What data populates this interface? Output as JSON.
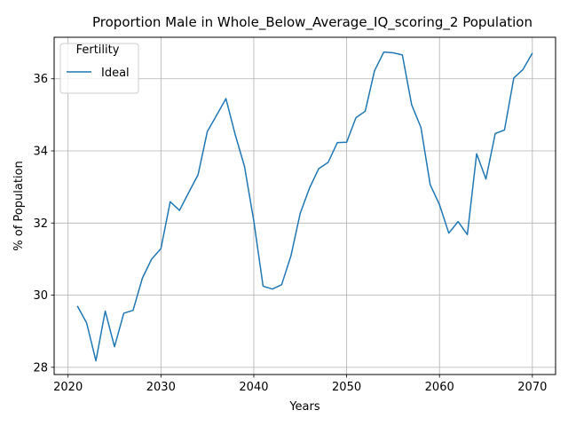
{
  "chart_data": {
    "type": "line",
    "title": "Proportion Male in Whole_Below_Average_IQ_scoring_2 Population",
    "xlabel": "Years",
    "ylabel": "% of Population",
    "xlim": [
      2018.5,
      2072.5
    ],
    "ylim": [
      27.8,
      37.15
    ],
    "xticks": [
      2020,
      2030,
      2040,
      2050,
      2060,
      2070
    ],
    "yticks": [
      28,
      30,
      32,
      34,
      36
    ],
    "grid": true,
    "legend": {
      "title": "Fertility",
      "placement": "top-left"
    },
    "series": [
      {
        "name": "Ideal",
        "color": "#1f77b4",
        "x": [
          2021,
          2022,
          2023,
          2024,
          2025,
          2026,
          2027,
          2028,
          2029,
          2030,
          2031,
          2032,
          2033,
          2034,
          2035,
          2036,
          2037,
          2038,
          2039,
          2040,
          2041,
          2042,
          2043,
          2044,
          2045,
          2046,
          2047,
          2048,
          2049,
          2050,
          2051,
          2052,
          2053,
          2054,
          2055,
          2056,
          2057,
          2058,
          2059,
          2060,
          2061,
          2062,
          2063,
          2064,
          2065,
          2066,
          2067,
          2068,
          2069,
          2070
        ],
        "y": [
          29.7,
          29.23,
          28.18,
          29.56,
          28.57,
          29.5,
          29.58,
          30.47,
          31.0,
          31.29,
          32.59,
          32.35,
          32.85,
          33.34,
          34.54,
          34.99,
          35.45,
          34.45,
          33.57,
          32.06,
          30.25,
          30.17,
          30.29,
          31.09,
          32.27,
          32.97,
          33.51,
          33.68,
          34.23,
          34.24,
          34.92,
          35.1,
          36.22,
          36.74,
          36.72,
          36.66,
          35.28,
          34.65,
          33.06,
          32.51,
          31.72,
          32.04,
          31.68,
          33.92,
          33.22,
          34.48,
          34.58,
          36.02,
          36.26,
          36.71
        ]
      }
    ]
  }
}
